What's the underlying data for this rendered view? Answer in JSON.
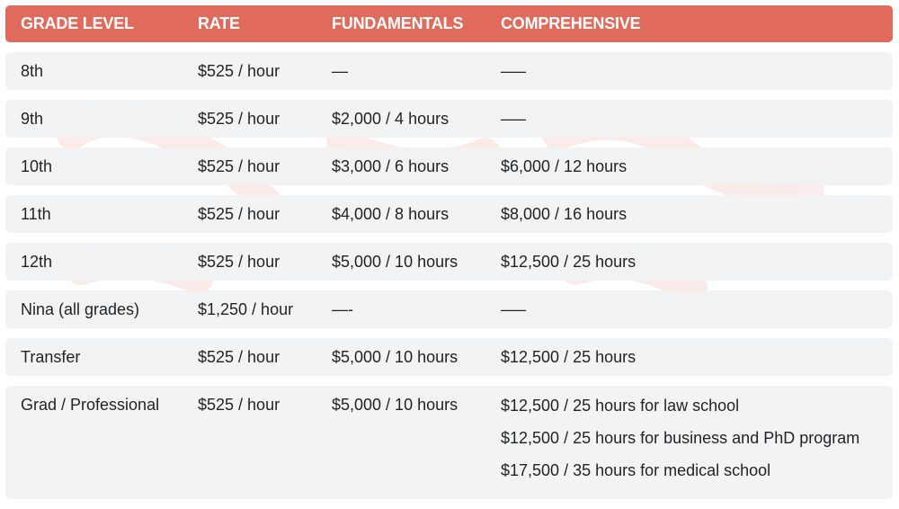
{
  "header": {
    "grade_level": "GRADE LEVEL",
    "rate": "RATE",
    "fundamentals": "FUNDAMENTALS",
    "comprehensive": "COMPREHENSIVE"
  },
  "rows": [
    {
      "grade": "8th",
      "rate": "$525 / hour",
      "fundamentals": "—",
      "comprehensive": [
        "—–"
      ]
    },
    {
      "grade": "9th",
      "rate": "$525 / hour",
      "fundamentals": "$2,000 / 4 hours",
      "comprehensive": [
        "—–"
      ]
    },
    {
      "grade": "10th",
      "rate": "$525 / hour",
      "fundamentals": "$3,000 / 6 hours",
      "comprehensive": [
        "$6,000 / 12 hours"
      ]
    },
    {
      "grade": "11th",
      "rate": "$525 / hour",
      "fundamentals": "$4,000 / 8 hours",
      "comprehensive": [
        "$8,000 / 16 hours"
      ]
    },
    {
      "grade": "12th",
      "rate": "$525 / hour",
      "fundamentals": "$5,000 / 10 hours",
      "comprehensive": [
        "$12,500 / 25 hours"
      ]
    },
    {
      "grade": "Nina (all grades)",
      "rate": "$1,250 / hour",
      "fundamentals": "—-",
      "comprehensive": [
        "—–"
      ]
    },
    {
      "grade": "Transfer",
      "rate": "$525 / hour",
      "fundamentals": "$5,000 / 10 hours",
      "comprehensive": [
        "$12,500 / 25 hours"
      ]
    },
    {
      "grade": "Grad / Professional",
      "rate": "$525 / hour",
      "fundamentals": "$5,000 / 10 hours",
      "comprehensive": [
        "$12,500 / 25 hours for law school",
        "$12,500 / 25 hours for business and PhD program",
        "$17,500 / 35 hours for medical school"
      ]
    }
  ],
  "colors": {
    "header_bg": "#e06a5b",
    "row_bg": "#f1f2f3",
    "text": "#1f2326",
    "watermark": "#f4d8d4"
  }
}
